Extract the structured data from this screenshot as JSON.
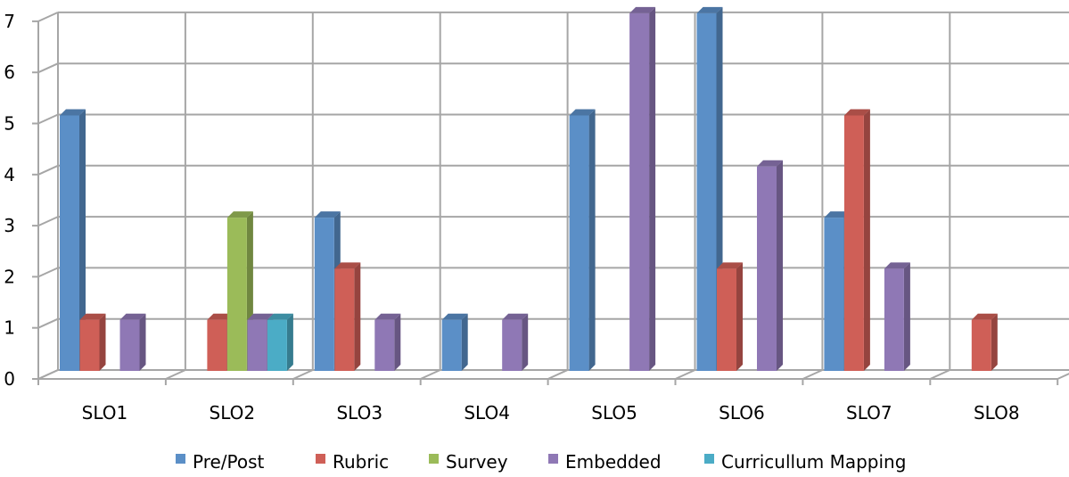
{
  "chart_data": {
    "type": "bar",
    "categories": [
      "SLO1",
      "SLO2",
      "SLO3",
      "SLO4",
      "SLO5",
      "SLO6",
      "SLO7",
      "SLO8"
    ],
    "series": [
      {
        "name": "Pre/Post",
        "color": "#5B8FC7",
        "values": [
          5,
          0,
          3,
          1,
          5,
          7,
          3,
          0
        ]
      },
      {
        "name": "Rubric",
        "color": "#CF5F57",
        "values": [
          1,
          1,
          2,
          0,
          0,
          2,
          5,
          1
        ]
      },
      {
        "name": "Survey",
        "color": "#9BBB59",
        "values": [
          0,
          3,
          0,
          0,
          0,
          0,
          0,
          0
        ]
      },
      {
        "name": "Embedded",
        "color": "#8F78B5",
        "values": [
          1,
          1,
          1,
          1,
          7,
          4,
          2,
          0
        ]
      },
      {
        "name": "Curricullum Mapping",
        "color": "#4BACC6",
        "values": [
          0,
          1,
          0,
          0,
          0,
          0,
          0,
          0
        ]
      }
    ],
    "yticks": [
      "0",
      "1",
      "2",
      "3",
      "4",
      "5",
      "6",
      "7"
    ],
    "ylim": [
      0,
      7
    ],
    "grid": true,
    "legend_position": "bottom",
    "style": "3d-clustered-column"
  }
}
